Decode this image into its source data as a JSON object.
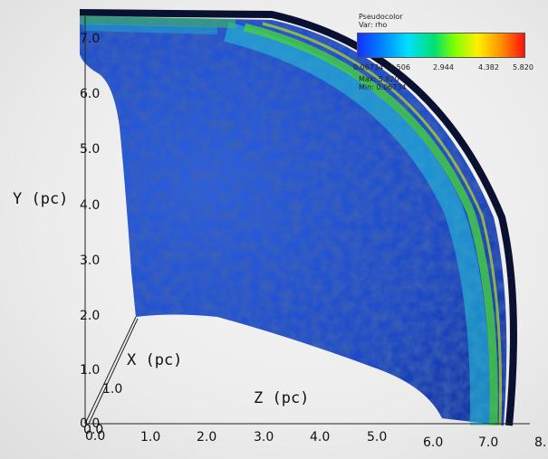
{
  "legend": {
    "title": "Pseudocolor",
    "var": "Var: rho",
    "ticks": [
      "0.06734",
      "1.506",
      "2.944",
      "4.382",
      "5.820"
    ],
    "max": "Max: 5.820",
    "min": "Min: 0.06734"
  },
  "axes": {
    "y_title": "Y (pc)",
    "x_title": "X (pc)",
    "z_title": "Z (pc)",
    "y_ticks": [
      "7.0",
      "6.0",
      "5.0",
      "4.0",
      "3.0",
      "2.0",
      "1.0",
      "0.0"
    ],
    "x_ticks": [
      "0.0",
      "1.0"
    ],
    "z_ticks": [
      "0.0",
      "1.0",
      "2.0",
      "3.0",
      "4.0",
      "5.0",
      "6.0",
      "7.0",
      "8."
    ]
  },
  "colors": {
    "bulk": "#1f4ecc",
    "shell_inner": "#22c8d8",
    "shell_mid": "#46d040",
    "rim": "#0a1030",
    "background": "#ececec"
  }
}
